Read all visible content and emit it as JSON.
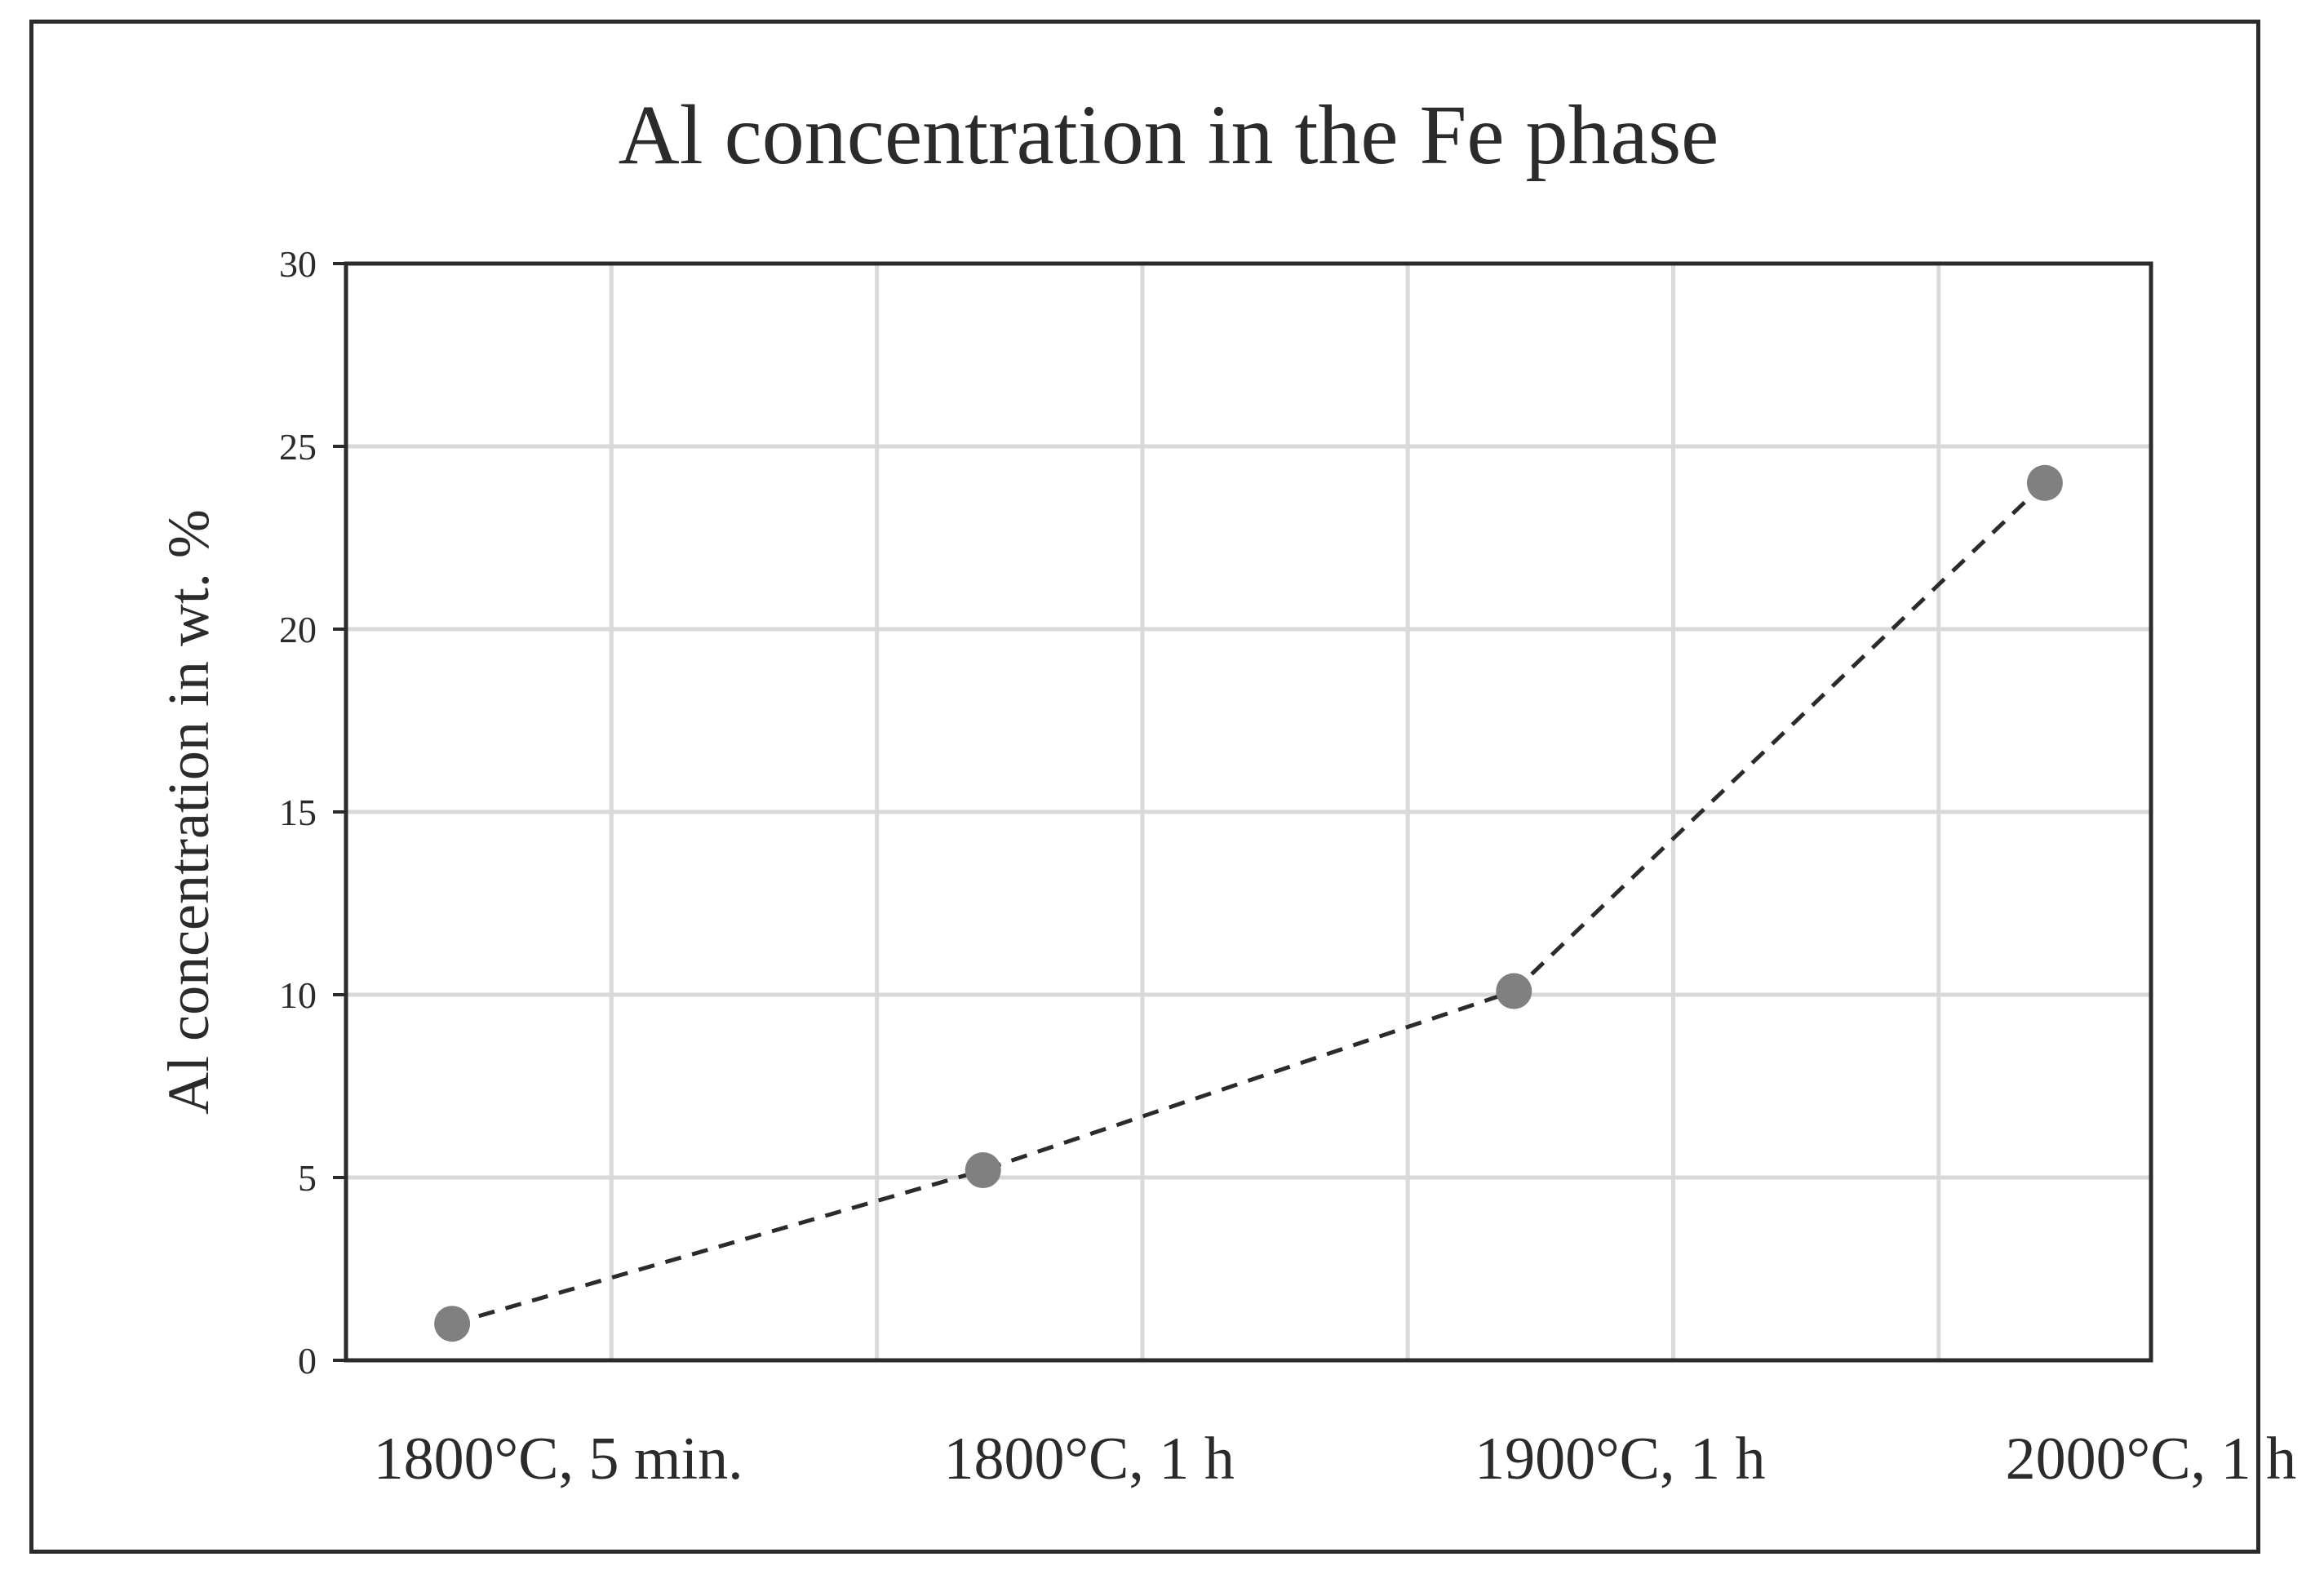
{
  "chart_data": {
    "type": "line",
    "title": "Al concentration in the Fe phase",
    "xlabel": "",
    "ylabel": "Al concentration in wt. %",
    "categories": [
      "1800°C, 5 min.",
      "1800°C, 1 h",
      "1900°C, 1 h",
      "2000°C, 1 h"
    ],
    "x": [
      0.4,
      2.4,
      4.4,
      6.4
    ],
    "values": [
      1.0,
      5.2,
      10.1,
      24.0
    ],
    "ylim": [
      0,
      30
    ],
    "yticks": [
      0,
      5,
      10,
      15,
      20,
      25,
      30
    ],
    "xlim": [
      0,
      6.8
    ],
    "xgrid": [
      1,
      2,
      3,
      4,
      5,
      6
    ],
    "grid": true,
    "line_style": "dashed",
    "colors": {
      "line": "#2b2b2b",
      "marker": "#808080",
      "grid": "#d9d9d9",
      "axis": "#2b2b2b"
    }
  }
}
